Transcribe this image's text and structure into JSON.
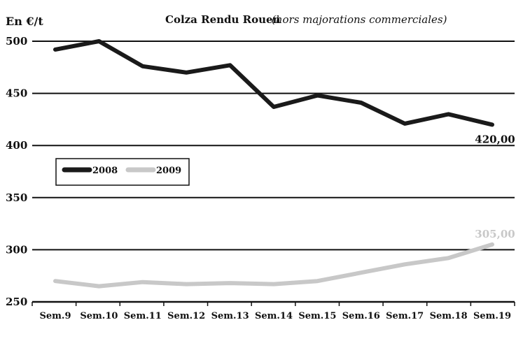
{
  "chart_data": {
    "type": "line",
    "title": "Colza Rendu Rouen",
    "subtitle": "(hors majorations commerciales)",
    "ylabel": "En €/t",
    "xlabel": "",
    "categories": [
      "Sem.9",
      "Sem.10",
      "Sem.11",
      "Sem.12",
      "Sem.13",
      "Sem.14",
      "Sem.15",
      "Sem.16",
      "Sem.17",
      "Sem.18",
      "Sem.19"
    ],
    "y_ticks": [
      "500",
      "450",
      "400",
      "350",
      "300",
      "250"
    ],
    "ylim": [
      250,
      500
    ],
    "grid": "horizontal",
    "legend_position": "center-left",
    "series": [
      {
        "name": "2008",
        "color": "#1a1a1a",
        "values": [
          492,
          500,
          476,
          470,
          477,
          437,
          448,
          441,
          421,
          430,
          420
        ],
        "end_label": "420,00"
      },
      {
        "name": "2009",
        "color": "#c8c8c8",
        "values": [
          270,
          265,
          269,
          267,
          268,
          267,
          270,
          278,
          286,
          292,
          305
        ],
        "end_label": "305,00"
      }
    ]
  }
}
